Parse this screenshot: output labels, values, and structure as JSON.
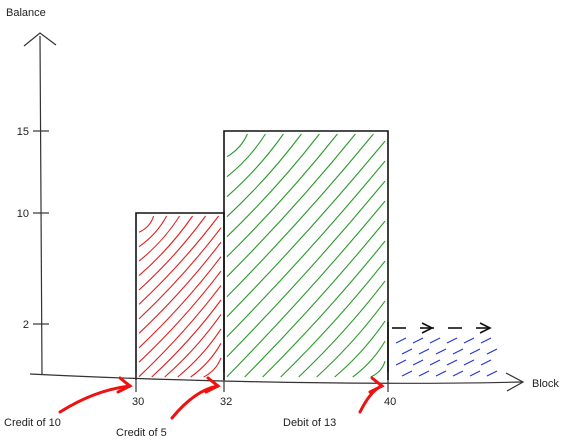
{
  "chart_data": {
    "type": "bar",
    "title": "",
    "xlabel": "Block",
    "ylabel": "Balance",
    "yticks": [
      2,
      10,
      15
    ],
    "ylim": [
      0,
      23
    ],
    "x_ticks": [
      "30",
      "32",
      "40"
    ],
    "bars": [
      {
        "x_start": 30,
        "x_end": 32,
        "value": 10,
        "color": "#e02020"
      },
      {
        "x_start": 32,
        "x_end": 40,
        "value": 15,
        "color": "#2a9a2a"
      },
      {
        "x_start": 40,
        "x_end": null,
        "value": 2,
        "color": "#2233dd",
        "continues": true
      }
    ],
    "annotations": [
      {
        "text": "Credit of 10",
        "block": 30,
        "color": "#f01010"
      },
      {
        "text": "Credit of 5",
        "block": 32,
        "color": "#f01010"
      },
      {
        "text": "Debit of 13",
        "block": 40,
        "color": "#f01010"
      }
    ],
    "grid": false,
    "style": "hand-drawn"
  }
}
